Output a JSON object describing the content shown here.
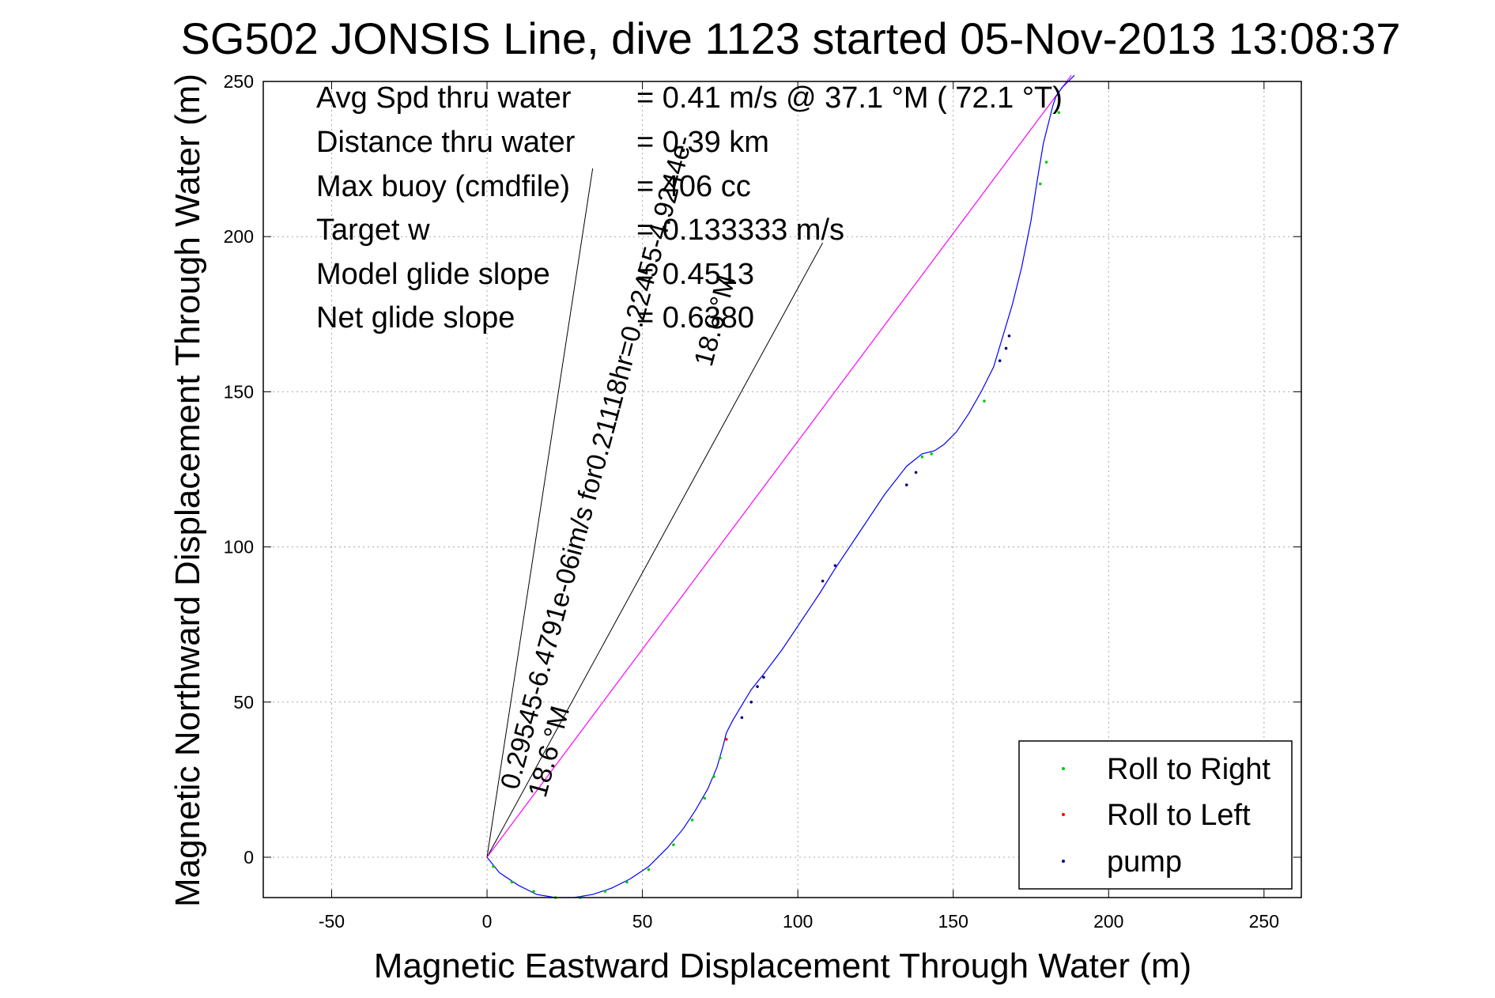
{
  "chart_data": {
    "type": "line",
    "title": "SG502 JONSIS Line, dive 1123 started 05-Nov-2013 13:08:37",
    "xlabel": "Magnetic Eastward Displacement Through Water (m)",
    "ylabel": "Magnetic Northward Displacement Through Water (m)",
    "xlim": [
      -72,
      262
    ],
    "ylim": [
      -13,
      250
    ],
    "xticks": [
      -50,
      0,
      50,
      100,
      150,
      200,
      250
    ],
    "yticks": [
      0,
      50,
      100,
      150,
      200,
      250
    ],
    "grid": true,
    "legend_position": "bottom-right",
    "stats": [
      {
        "label": "Avg Spd thru water",
        "value": "=  0.41 m/s @  37.1 °M ( 72.1 °T)"
      },
      {
        "label": "Distance thru water",
        "value": "=  0.39 km"
      },
      {
        "label": "Max buoy (cmdfile)",
        "value": "= 406 cc"
      },
      {
        "label": "Target w",
        "value": "= 0.133333 m/s"
      },
      {
        "label": "Model glide slope",
        "value": "= 0.4513"
      },
      {
        "label": "Net glide slope",
        "value": "= 0.6380"
      }
    ],
    "current_label": "0.29545-6.4791e-06im/s for0.21118hr=0.22455-4.9244e-",
    "direction_labels": [
      "18.6 °M",
      "18.6 °M"
    ],
    "track": {
      "name": "glider track",
      "color": "#0000ff",
      "x": [
        0,
        4,
        10,
        16,
        22,
        28,
        34,
        40,
        46,
        52,
        58,
        63,
        67,
        71,
        74,
        76,
        77,
        79,
        82,
        85,
        89,
        95,
        101,
        107,
        112,
        120,
        128,
        135,
        140,
        144,
        147,
        151,
        155,
        159,
        163,
        166,
        169,
        172,
        175,
        177,
        179,
        181,
        182,
        183,
        185,
        187,
        189
      ],
      "y": [
        0,
        -5,
        -9,
        -12,
        -13,
        -13,
        -12,
        -10,
        -7,
        -3,
        3,
        9,
        15,
        22,
        29,
        36,
        40,
        44,
        49,
        54,
        59,
        67,
        76,
        85,
        93,
        105,
        117,
        126,
        130,
        131,
        133,
        137,
        143,
        150,
        158,
        168,
        178,
        190,
        205,
        218,
        230,
        238,
        242,
        245,
        248,
        250,
        252
      ]
    },
    "current_vector": {
      "x": [
        0,
        188
      ],
      "y": [
        0,
        252
      ],
      "color": "#ff00ff"
    },
    "wedge_lines": [
      {
        "x": [
          0,
          34
        ],
        "y": [
          0,
          222
        ]
      },
      {
        "x": [
          0,
          108
        ],
        "y": [
          0,
          198
        ]
      }
    ],
    "pump_points": {
      "x": [
        82,
        85,
        87,
        89,
        108,
        112,
        135,
        138,
        165,
        167,
        168
      ],
      "y": [
        45,
        50,
        55,
        58,
        89,
        94,
        120,
        124,
        160,
        164,
        168
      ]
    },
    "roll_right_points": {
      "x": [
        2,
        8,
        15,
        22,
        30,
        38,
        45,
        52,
        60,
        66,
        70,
        73,
        75,
        140,
        143,
        160,
        178,
        180,
        184
      ],
      "y": [
        -3,
        -8,
        -11,
        -13,
        -13,
        -11,
        -8,
        -4,
        4,
        12,
        19,
        26,
        32,
        129,
        130,
        147,
        217,
        224,
        240
      ]
    },
    "roll_left_points": {
      "x": [
        77
      ],
      "y": [
        38
      ]
    },
    "legend": [
      {
        "label": "Roll to Right",
        "color": "#00cc00"
      },
      {
        "label": "Roll to Left",
        "color": "#ff0000"
      },
      {
        "label": "pump",
        "color": "#000080"
      }
    ]
  }
}
